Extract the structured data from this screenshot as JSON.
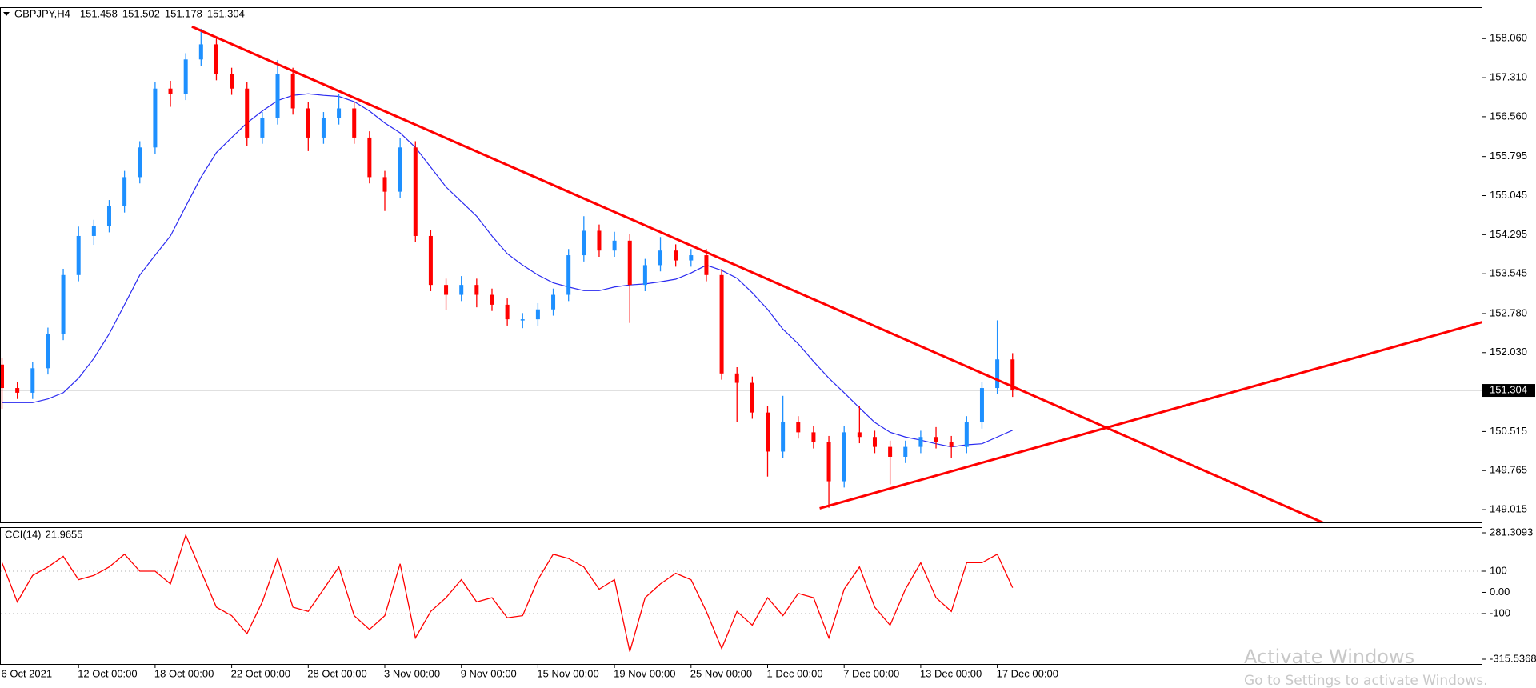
{
  "chart_data": [
    {
      "type": "candlestick",
      "symbol": "GBPJPY,H4",
      "ohlc_header": [
        151.458,
        151.502,
        151.178,
        151.304
      ],
      "up_color": "#1e90ff",
      "down_color": "#ff0000",
      "categories": [
        "6 Oct 2021",
        null,
        null,
        null,
        null,
        "12 Oct 00:00",
        null,
        null,
        null,
        null,
        "18 Oct 00:00",
        null,
        null,
        null,
        null,
        "22 Oct 00:00",
        null,
        null,
        null,
        null,
        "28 Oct 00:00",
        null,
        null,
        null,
        null,
        "3 Nov 00:00",
        null,
        null,
        null,
        null,
        "9 Nov 00:00",
        null,
        null,
        null,
        null,
        "15 Nov 00:00",
        null,
        null,
        null,
        null,
        "19 Nov 00:00",
        null,
        null,
        null,
        null,
        "25 Nov 00:00",
        null,
        null,
        null,
        null,
        "1 Dec 00:00",
        null,
        null,
        null,
        null,
        "7 Dec 00:00",
        null,
        null,
        null,
        null,
        "13 Dec 00:00",
        null,
        null,
        null,
        null,
        "17 Dec 00:00",
        null
      ],
      "open": [
        151.8,
        151.35,
        151.26,
        151.73,
        152.39,
        153.52,
        154.27,
        154.46,
        154.84,
        155.4,
        155.97,
        157.1,
        157.0,
        157.66,
        157.95,
        157.38,
        157.1,
        156.16,
        156.53,
        157.38,
        156.72,
        156.16,
        156.53,
        156.72,
        156.16,
        155.4,
        155.12,
        155.97,
        154.27,
        153.33,
        153.14,
        153.33,
        153.14,
        152.95,
        152.67,
        152.67,
        152.86,
        153.14,
        153.9,
        154.37,
        153.99,
        154.18,
        153.33,
        153.71,
        153.99,
        153.8,
        153.9,
        153.52,
        151.63,
        151.45,
        150.88,
        150.13,
        150.69,
        150.5,
        150.31,
        149.56,
        150.5,
        150.41,
        150.22,
        150.03,
        150.22,
        150.41,
        150.31,
        150.22,
        150.69,
        151.35,
        151.9
      ],
      "high": [
        151.92,
        151.47,
        151.85,
        152.51,
        153.64,
        154.45,
        154.58,
        154.96,
        155.52,
        156.09,
        157.22,
        157.25,
        157.78,
        158.25,
        158.1,
        157.5,
        157.22,
        156.65,
        157.65,
        157.5,
        156.84,
        156.65,
        157.0,
        156.84,
        156.28,
        155.52,
        156.15,
        156.09,
        154.39,
        153.45,
        153.5,
        153.45,
        153.26,
        153.07,
        152.79,
        152.98,
        153.26,
        154.02,
        154.65,
        154.49,
        154.35,
        154.3,
        153.83,
        154.25,
        154.11,
        154.02,
        154.02,
        153.64,
        151.75,
        151.57,
        151.0,
        151.2,
        150.81,
        150.62,
        150.43,
        150.62,
        151.0,
        150.53,
        150.34,
        150.34,
        150.53,
        150.6,
        150.43,
        150.81,
        151.47,
        152.65,
        152.02
      ],
      "low": [
        150.95,
        151.14,
        151.14,
        151.61,
        152.27,
        153.4,
        154.1,
        154.34,
        154.72,
        155.28,
        155.85,
        156.75,
        156.88,
        157.54,
        157.26,
        156.98,
        156.0,
        156.04,
        156.41,
        156.6,
        155.9,
        156.04,
        156.41,
        156.04,
        155.28,
        154.75,
        155.0,
        154.15,
        153.21,
        152.85,
        153.02,
        152.9,
        152.83,
        152.55,
        152.5,
        152.55,
        152.74,
        153.02,
        153.78,
        153.87,
        153.87,
        152.6,
        153.21,
        153.59,
        153.68,
        153.68,
        153.4,
        151.51,
        150.7,
        150.76,
        149.65,
        150.01,
        150.38,
        150.19,
        149.05,
        149.44,
        150.29,
        150.1,
        149.5,
        149.91,
        150.1,
        150.19,
        150.0,
        150.1,
        150.57,
        151.23,
        151.18
      ],
      "close": [
        151.35,
        151.26,
        151.73,
        152.39,
        153.52,
        154.27,
        154.46,
        154.84,
        155.4,
        155.97,
        157.1,
        157.0,
        157.66,
        157.95,
        157.38,
        157.1,
        156.16,
        156.53,
        157.38,
        156.72,
        156.16,
        156.53,
        156.72,
        156.16,
        155.4,
        155.12,
        155.97,
        154.27,
        153.33,
        153.14,
        153.33,
        153.14,
        152.95,
        152.67,
        152.67,
        152.86,
        153.14,
        153.9,
        154.37,
        153.99,
        154.18,
        153.33,
        153.71,
        153.99,
        153.8,
        153.9,
        153.52,
        151.63,
        151.45,
        150.88,
        150.13,
        150.69,
        150.5,
        150.31,
        149.56,
        150.5,
        150.41,
        150.22,
        150.03,
        150.22,
        150.41,
        150.31,
        150.22,
        150.69,
        151.35,
        151.9,
        151.304
      ],
      "overlays": [
        {
          "color": "#2a2af0",
          "values": [
            151.07,
            151.07,
            151.07,
            151.14,
            151.26,
            151.54,
            151.92,
            152.39,
            152.95,
            153.52,
            153.9,
            154.27,
            154.84,
            155.4,
            155.87,
            156.16,
            156.44,
            156.67,
            156.87,
            156.97,
            157.0,
            156.97,
            156.95,
            156.85,
            156.67,
            156.44,
            156.25,
            155.97,
            155.59,
            155.21,
            154.93,
            154.65,
            154.27,
            153.93,
            153.71,
            153.52,
            153.37,
            153.29,
            153.22,
            153.22,
            153.29,
            153.33,
            153.35,
            153.39,
            153.44,
            153.56,
            153.71,
            153.61,
            153.46,
            153.18,
            152.86,
            152.48,
            152.2,
            151.86,
            151.54,
            151.26,
            150.97,
            150.69,
            150.5,
            150.41,
            150.35,
            150.28,
            150.22,
            150.26,
            150.28,
            150.41,
            150.54
          ]
        }
      ],
      "trendlines": [
        {
          "color": "#ff0000",
          "points": [
            [
              12.4,
              158.29
            ],
            [
              86.7,
              148.71
            ]
          ]
        },
        {
          "color": "#ff0000",
          "points": [
            [
              53.4,
              149.04
            ],
            [
              96.7,
              152.62
            ]
          ]
        }
      ],
      "last_price": 151.304,
      "ylim": [
        148.77,
        158.663
      ],
      "yticks": [
        {
          "value": 158.06,
          "label": "158.060"
        },
        {
          "value": 157.31,
          "label": "157.310"
        },
        {
          "value": 156.56,
          "label": "156.560"
        },
        155.795,
        155.045,
        154.295,
        153.545,
        {
          "value": 152.78,
          "label": "152.780"
        },
        {
          "value": 152.03,
          "label": "152.030"
        },
        150.515,
        149.765,
        149.015
      ]
    },
    {
      "type": "line",
      "name": "CCI(14)",
      "current": 21.9655,
      "color": "#ff0000",
      "values": [
        140,
        -45,
        80,
        120,
        170,
        60,
        80,
        120,
        180,
        100,
        100,
        40,
        270,
        100,
        -70,
        -110,
        -195,
        -45,
        160,
        -70,
        -90,
        15,
        120,
        -110,
        -175,
        -110,
        135,
        -215,
        -90,
        -25,
        60,
        -45,
        -25,
        -120,
        -110,
        60,
        180,
        160,
        120,
        15,
        60,
        -280,
        -25,
        40,
        90,
        60,
        -90,
        -265,
        -90,
        -155,
        -25,
        -110,
        -5,
        -25,
        -215,
        15,
        120,
        -70,
        -155,
        15,
        140,
        -25,
        -90,
        140,
        140,
        180,
        21.9655
      ],
      "levels": [
        100,
        -100
      ],
      "ylim": [
        -315.5368,
        281.3093
      ],
      "yticks": [
        281.3093,
        100,
        {
          "value": 0,
          "label": "0.00"
        },
        -100,
        -315.5368
      ]
    }
  ],
  "watermark": {
    "title": "Activate Windows",
    "subtitle": "Go to Settings to activate Windows."
  }
}
